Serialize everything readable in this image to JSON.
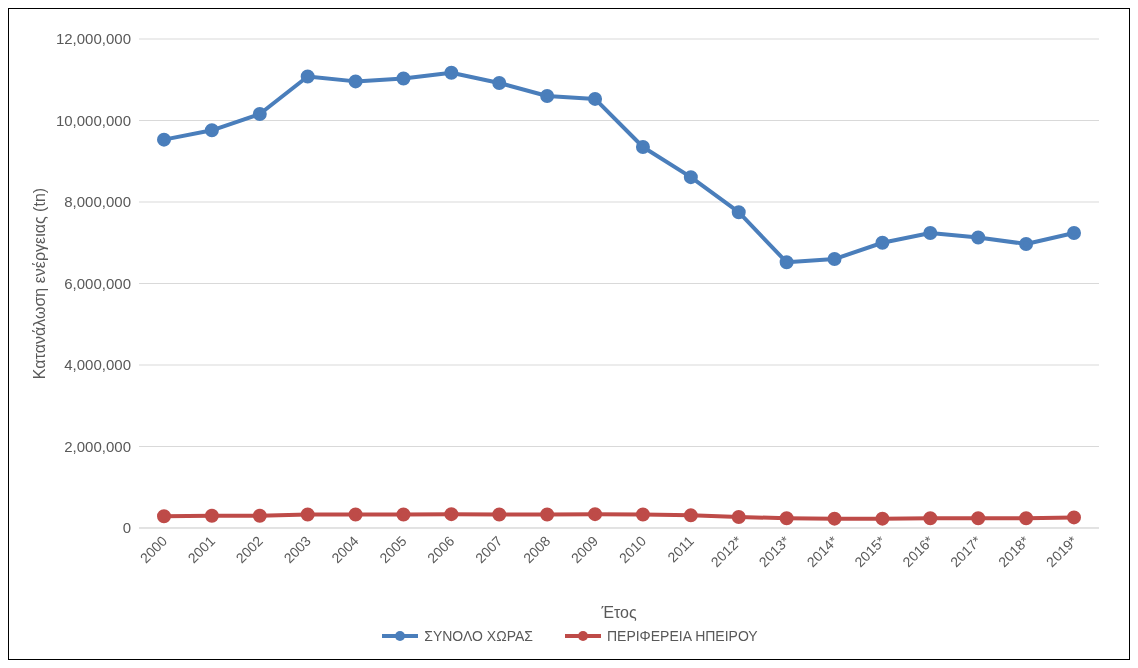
{
  "chart_data": {
    "type": "line",
    "xlabel": "Έτος",
    "ylabel": "Κατανάλωση ενέργειας (tn)",
    "categories": [
      "2000",
      "2001",
      "2002",
      "2003",
      "2004",
      "2005",
      "2006",
      "2007",
      "2008",
      "2009",
      "2010",
      "2011",
      "2012*",
      "2013*",
      "2014*",
      "2015*",
      "2016*",
      "2017*",
      "2018*",
      "2019*"
    ],
    "series": [
      {
        "name": "ΣΥΝΟΛΟ ΧΩΡΑΣ",
        "color": "#4a7ebb",
        "values": [
          9530000,
          9760000,
          10160000,
          11080000,
          10960000,
          11030000,
          11170000,
          10920000,
          10600000,
          10530000,
          9350000,
          8610000,
          7750000,
          6520000,
          6600000,
          7000000,
          7240000,
          7130000,
          6970000,
          7240000
        ]
      },
      {
        "name": "ΠΕΡΙΦΕΡΕΙΑ ΗΠΕΙΡΟΥ",
        "color": "#be4b48",
        "values": [
          290000,
          300000,
          300000,
          330000,
          330000,
          330000,
          340000,
          330000,
          330000,
          340000,
          330000,
          310000,
          270000,
          240000,
          230000,
          230000,
          240000,
          240000,
          240000,
          260000
        ]
      }
    ],
    "ylim": [
      0,
      12000000
    ],
    "yticks": [
      0,
      {
        "value": 2000000,
        "label": "2,000,000"
      },
      {
        "value": 4000000,
        "label": "4,000,000"
      },
      {
        "value": 6000000,
        "label": "6,000,000"
      },
      {
        "value": 8000000,
        "label": "8,000,000"
      },
      {
        "value": 10000000,
        "label": "10,000,000"
      },
      {
        "value": 12000000,
        "label": "12,000,000"
      }
    ],
    "grid": "y",
    "legend": "bottom",
    "marker": "circle",
    "line_style": "solid"
  }
}
